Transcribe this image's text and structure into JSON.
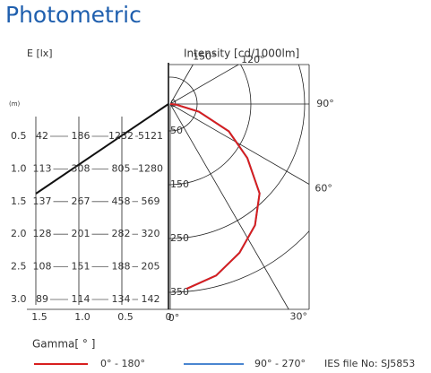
{
  "chart_data": {
    "type": "polar",
    "title": "Photometric",
    "r_label": "Intensity [cd/1000lm]",
    "x_label": "Gamma[ ° ]",
    "note": "IES file No: SJ5853",
    "angles": [
      5,
      15,
      25,
      35,
      45,
      55,
      65,
      75,
      85,
      90
    ],
    "series": [
      {
        "name": "90° - 270°",
        "color": "#4a86d0",
        "values": [
          345,
          330,
          305,
          275,
          235,
          175,
          120,
          55,
          10,
          0
        ]
      },
      {
        "name": "0° - 180°",
        "color": "#d81e1e",
        "values": [
          345,
          330,
          305,
          275,
          235,
          175,
          120,
          55,
          10,
          0
        ]
      }
    ],
    "rlim": [
      0,
      350
    ],
    "rticks": [
      0,
      50,
      150,
      250,
      350
    ],
    "angle_ticks": [
      {
        "value": 0,
        "label": "0°"
      },
      {
        "value": 30,
        "label": "30°"
      },
      {
        "value": 60,
        "label": "60°"
      },
      {
        "value": 90,
        "label": "90°"
      },
      {
        "value": 120,
        "label": "120°"
      },
      {
        "value": 150,
        "label": "150°"
      }
    ]
  },
  "illuminance_table": {
    "title": "E [lx]",
    "unit": "(m)",
    "distances": [
      "0.5",
      "1.0",
      "1.5",
      "2.0",
      "2.5",
      "3.0"
    ],
    "offsets": [
      "1.5",
      "1.0",
      "0.5",
      "0"
    ],
    "rows": [
      [
        "42",
        "186",
        "1232",
        "5121"
      ],
      [
        "113",
        "308",
        "805",
        "1280"
      ],
      [
        "137",
        "267",
        "458",
        "569"
      ],
      [
        "128",
        "201",
        "282",
        "320"
      ],
      [
        "108",
        "151",
        "188",
        "205"
      ],
      [
        "89",
        "114",
        "134",
        "142"
      ]
    ]
  }
}
